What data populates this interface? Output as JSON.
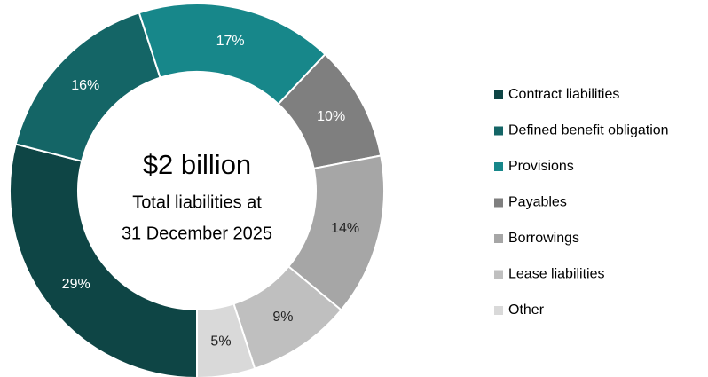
{
  "chart_data": {
    "type": "donut",
    "center_title": "$2 billion",
    "center_subtitle": [
      "Total liabilities at",
      "31 December 2025"
    ],
    "categories": [
      "Contract liabilities",
      "Defined benefit obligation",
      "Provisions",
      "Payables",
      "Borrowings",
      "Lease liabilities",
      "Other"
    ],
    "values": [
      29,
      16,
      17,
      10,
      14,
      9,
      5
    ],
    "value_labels": [
      "29%",
      "16%",
      "17%",
      "10%",
      "14%",
      "9%",
      "5%"
    ],
    "colors": [
      "#0e4545",
      "#146566",
      "#17878a",
      "#7f7f7f",
      "#a6a6a6",
      "#bfbfbf",
      "#d9d9d9"
    ],
    "legend": "right"
  }
}
